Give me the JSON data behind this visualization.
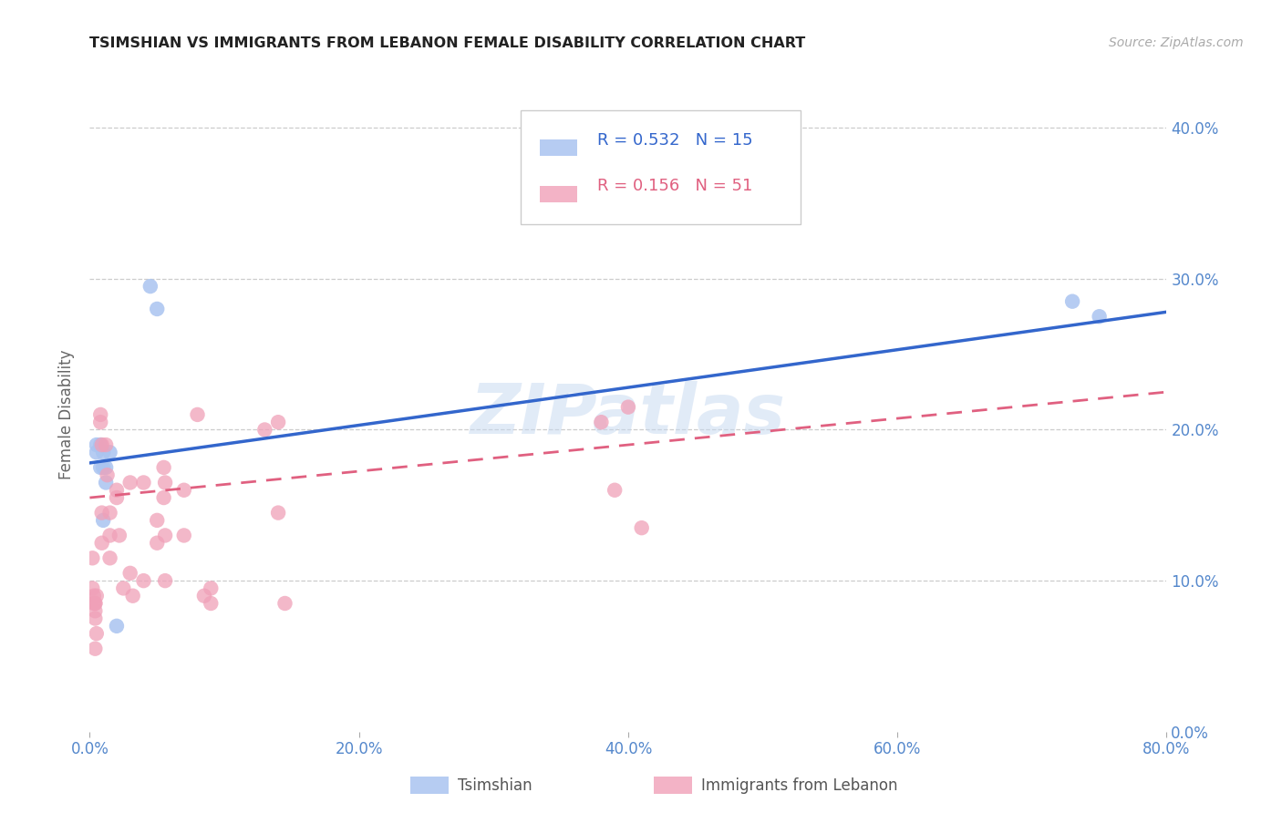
{
  "title": "TSIMSHIAN VS IMMIGRANTS FROM LEBANON FEMALE DISABILITY CORRELATION CHART",
  "source": "Source: ZipAtlas.com",
  "ylabel_label": "Female Disability",
  "legend1_R": "0.532",
  "legend1_N": "15",
  "legend2_R": "0.156",
  "legend2_N": "51",
  "blue_color": "#aac4f0",
  "pink_color": "#f0a0b8",
  "line_blue": "#3366cc",
  "line_pink": "#e06080",
  "tick_color": "#5588cc",
  "watermark": "ZIPatlas",
  "tsimshian_x": [
    0.005,
    0.005,
    0.008,
    0.008,
    0.01,
    0.01,
    0.01,
    0.012,
    0.012,
    0.015,
    0.02,
    0.045,
    0.05,
    0.73,
    0.75
  ],
  "tsimshian_y": [
    0.19,
    0.185,
    0.19,
    0.175,
    0.185,
    0.175,
    0.14,
    0.175,
    0.165,
    0.185,
    0.07,
    0.295,
    0.28,
    0.285,
    0.275
  ],
  "lebanon_x": [
    0.002,
    0.002,
    0.003,
    0.003,
    0.004,
    0.004,
    0.004,
    0.004,
    0.004,
    0.005,
    0.005,
    0.008,
    0.008,
    0.009,
    0.009,
    0.009,
    0.012,
    0.013,
    0.015,
    0.015,
    0.015,
    0.02,
    0.02,
    0.022,
    0.025,
    0.03,
    0.03,
    0.032,
    0.04,
    0.04,
    0.05,
    0.05,
    0.055,
    0.055,
    0.056,
    0.056,
    0.056,
    0.07,
    0.07,
    0.08,
    0.085,
    0.09,
    0.09,
    0.13,
    0.14,
    0.14,
    0.145,
    0.38,
    0.39,
    0.4,
    0.41
  ],
  "lebanon_y": [
    0.115,
    0.095,
    0.09,
    0.085,
    0.085,
    0.085,
    0.08,
    0.075,
    0.055,
    0.09,
    0.065,
    0.21,
    0.205,
    0.19,
    0.145,
    0.125,
    0.19,
    0.17,
    0.145,
    0.13,
    0.115,
    0.16,
    0.155,
    0.13,
    0.095,
    0.165,
    0.105,
    0.09,
    0.165,
    0.1,
    0.14,
    0.125,
    0.175,
    0.155,
    0.165,
    0.13,
    0.1,
    0.16,
    0.13,
    0.21,
    0.09,
    0.095,
    0.085,
    0.2,
    0.205,
    0.145,
    0.085,
    0.205,
    0.16,
    0.215,
    0.135
  ],
  "xmin": 0.0,
  "xmax": 0.8,
  "ymin": 0.0,
  "ymax": 0.42,
  "xticks": [
    0.0,
    0.2,
    0.4,
    0.6,
    0.8
  ],
  "xtick_labels": [
    "0.0%",
    "20.0%",
    "40.0%",
    "60.0%",
    "80.0%"
  ],
  "yticks": [
    0.0,
    0.1,
    0.2,
    0.3,
    0.4
  ],
  "ytick_labels": [
    "0.0%",
    "10.0%",
    "20.0%",
    "30.0%",
    "40.0%"
  ],
  "blue_line_x0": 0.0,
  "blue_line_y0": 0.178,
  "blue_line_x1": 0.8,
  "blue_line_y1": 0.278,
  "pink_line_x0": 0.0,
  "pink_line_y0": 0.155,
  "pink_line_x1": 0.8,
  "pink_line_y1": 0.225,
  "legend_label1": "Tsimshian",
  "legend_label2": "Immigrants from Lebanon"
}
